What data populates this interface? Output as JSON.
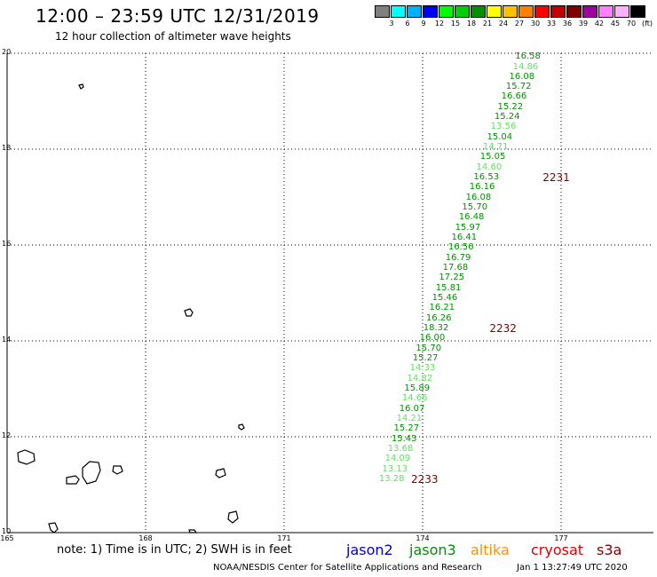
{
  "header": {
    "title": "12:00 – 23:59 UTC 12/31/2019",
    "subtitle": "12 hour collection of altimeter wave heights"
  },
  "colorbar": {
    "colors": [
      "#808080",
      "#00ffff",
      "#00b0ff",
      "#0000ff",
      "#00ff00",
      "#00d000",
      "#009000",
      "#ffff00",
      "#ffc000",
      "#ff8000",
      "#ff0000",
      "#c00000",
      "#800000",
      "#a000a0",
      "#ff80ff",
      "#ffb0ff",
      "#000000"
    ],
    "labels": [
      "3",
      "6",
      "9",
      "12",
      "15",
      "18",
      "21",
      "24",
      "27",
      "30",
      "33",
      "36",
      "39",
      "42",
      "45",
      "70",
      "(ft)"
    ]
  },
  "map": {
    "lat_range": [
      10,
      20
    ],
    "lon_range": [
      165,
      179
    ],
    "lat_labels": [
      "20",
      "18",
      "16",
      "14",
      "12",
      "10"
    ],
    "lon_labels": [
      "165",
      "168",
      "171",
      "174",
      "177"
    ],
    "grid_color": "#000000",
    "land_color": "#000000"
  },
  "chart_data": {
    "type": "scatter",
    "x_unit": "longitude",
    "y_unit": "latitude",
    "points": [
      {
        "lat": 19.9,
        "lon": 176.28,
        "value": "16.58",
        "color": "#009000"
      },
      {
        "lat": 19.69,
        "lon": 176.23,
        "value": "14.86",
        "color": "#66dd66"
      },
      {
        "lat": 19.48,
        "lon": 176.15,
        "value": "16.08",
        "color": "#009000"
      },
      {
        "lat": 19.28,
        "lon": 176.08,
        "value": "15.72",
        "color": "#009000"
      },
      {
        "lat": 19.07,
        "lon": 175.98,
        "value": "16.66",
        "color": "#009000"
      },
      {
        "lat": 18.86,
        "lon": 175.9,
        "value": "15.22",
        "color": "#009000"
      },
      {
        "lat": 18.65,
        "lon": 175.83,
        "value": "15.24",
        "color": "#009000"
      },
      {
        "lat": 18.44,
        "lon": 175.75,
        "value": "13.56",
        "color": "#66dd66"
      },
      {
        "lat": 18.23,
        "lon": 175.67,
        "value": "15.04",
        "color": "#009000"
      },
      {
        "lat": 18.02,
        "lon": 175.58,
        "value": "14.71",
        "color": "#66dd66"
      },
      {
        "lat": 17.81,
        "lon": 175.52,
        "value": "15.05",
        "color": "#009000"
      },
      {
        "lat": 17.6,
        "lon": 175.44,
        "value": "14.60",
        "color": "#66dd66"
      },
      {
        "lat": 17.39,
        "lon": 175.38,
        "value": "16.53",
        "color": "#009000"
      },
      {
        "lat": 17.18,
        "lon": 175.29,
        "value": "16.16",
        "color": "#009000"
      },
      {
        "lat": 16.97,
        "lon": 175.21,
        "value": "16.08",
        "color": "#009000"
      },
      {
        "lat": 16.76,
        "lon": 175.13,
        "value": "15.70",
        "color": "#009000"
      },
      {
        "lat": 16.55,
        "lon": 175.06,
        "value": "16.48",
        "color": "#009000"
      },
      {
        "lat": 16.34,
        "lon": 174.98,
        "value": "15.97",
        "color": "#009000"
      },
      {
        "lat": 16.13,
        "lon": 174.9,
        "value": "16.41",
        "color": "#009000"
      },
      {
        "lat": 15.92,
        "lon": 174.83,
        "value": "16.56",
        "color": "#009000"
      },
      {
        "lat": 15.71,
        "lon": 174.77,
        "value": "16.79",
        "color": "#009000"
      },
      {
        "lat": 15.5,
        "lon": 174.71,
        "value": "17.68",
        "color": "#009000"
      },
      {
        "lat": 15.29,
        "lon": 174.63,
        "value": "17.25",
        "color": "#009000"
      },
      {
        "lat": 15.08,
        "lon": 174.56,
        "value": "15.81",
        "color": "#009000"
      },
      {
        "lat": 14.87,
        "lon": 174.48,
        "value": "15.46",
        "color": "#009000"
      },
      {
        "lat": 14.66,
        "lon": 174.42,
        "value": "16.21",
        "color": "#009000"
      },
      {
        "lat": 14.45,
        "lon": 174.35,
        "value": "16.26",
        "color": "#009000"
      },
      {
        "lat": 14.24,
        "lon": 174.29,
        "value": "18.32",
        "color": "#009000"
      },
      {
        "lat": 14.03,
        "lon": 174.21,
        "value": "16.00",
        "color": "#009000"
      },
      {
        "lat": 13.82,
        "lon": 174.13,
        "value": "15.70",
        "color": "#009000"
      },
      {
        "lat": 13.61,
        "lon": 174.06,
        "value": "15.27",
        "color": "#009000"
      },
      {
        "lat": 13.4,
        "lon": 174.0,
        "value": "14.33",
        "color": "#66dd66"
      },
      {
        "lat": 13.19,
        "lon": 173.94,
        "value": "14.82",
        "color": "#66dd66"
      },
      {
        "lat": 12.98,
        "lon": 173.88,
        "value": "15.89",
        "color": "#009000"
      },
      {
        "lat": 12.77,
        "lon": 173.83,
        "value": "14.66",
        "color": "#66dd66"
      },
      {
        "lat": 12.56,
        "lon": 173.77,
        "value": "16.07",
        "color": "#009000"
      },
      {
        "lat": 12.35,
        "lon": 173.71,
        "value": "14.21",
        "color": "#66dd66"
      },
      {
        "lat": 12.14,
        "lon": 173.65,
        "value": "15.27",
        "color": "#009000"
      },
      {
        "lat": 11.93,
        "lon": 173.6,
        "value": "15.43",
        "color": "#009000"
      },
      {
        "lat": 11.72,
        "lon": 173.52,
        "value": "13.68",
        "color": "#66dd66"
      },
      {
        "lat": 11.51,
        "lon": 173.46,
        "value": "14.09",
        "color": "#66dd66"
      },
      {
        "lat": 11.3,
        "lon": 173.4,
        "value": "13.13",
        "color": "#66dd66"
      },
      {
        "lat": 11.09,
        "lon": 173.33,
        "value": "13.28",
        "color": "#66dd66"
      }
    ],
    "time_labels": [
      {
        "lat": 17.39,
        "lon": 176.6,
        "text": "2231"
      },
      {
        "lat": 14.24,
        "lon": 175.45,
        "text": "2232"
      },
      {
        "lat": 11.09,
        "lon": 173.75,
        "text": "2233"
      }
    ]
  },
  "footer": {
    "note": "note:  1) Time is in UTC; 2) SWH is in feet",
    "satellites": [
      {
        "name": "jason2",
        "color": "#0000cc"
      },
      {
        "name": "jason3",
        "color": "#009000"
      },
      {
        "name": "altika",
        "color": "#ff9000"
      },
      {
        "name": "cryosat",
        "color": "#dd0000"
      },
      {
        "name": "s3a",
        "color": "#800000"
      }
    ],
    "credit": "NOAA/NESDIS Center for Satellite Applications and Research",
    "timestamp": "Jan  1 13:27:49 UTC 2020"
  }
}
